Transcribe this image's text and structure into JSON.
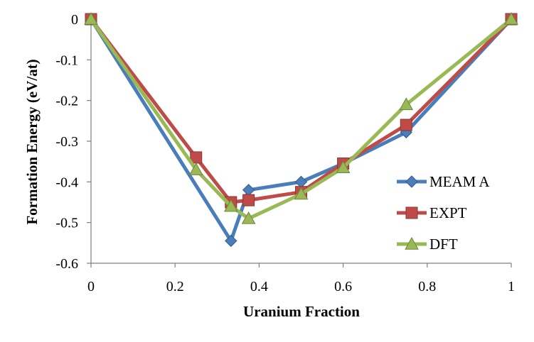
{
  "chart_data": {
    "type": "line",
    "title": "",
    "xlabel": "Uranium Fraction",
    "ylabel": "Formation Energy (eV/at)",
    "xlim": [
      0,
      1
    ],
    "ylim": [
      -0.6,
      0
    ],
    "xticks": [
      0,
      0.2,
      0.4,
      0.6,
      0.8,
      1
    ],
    "xtick_labels": [
      "0",
      "0.2",
      "0.4",
      "0.6",
      "0.8",
      "1"
    ],
    "yticks": [
      0,
      -0.1,
      -0.2,
      -0.3,
      -0.4,
      -0.5,
      -0.6
    ],
    "ytick_labels": [
      "0",
      "-0.1",
      "-0.2",
      "-0.3",
      "-0.4",
      "-0.5",
      "-0.6"
    ],
    "grid": false,
    "legend_position": "lower-right",
    "series": [
      {
        "name": "MEAM A",
        "color": "#4a7ebb",
        "marker": "diamond",
        "x": [
          0,
          0.333,
          0.375,
          0.5,
          0.6,
          0.75,
          1
        ],
        "y": [
          0,
          -0.545,
          -0.42,
          -0.4,
          -0.355,
          -0.278,
          0
        ]
      },
      {
        "name": "EXPT",
        "color": "#be4b48",
        "marker": "square",
        "x": [
          0,
          0.25,
          0.333,
          0.375,
          0.5,
          0.6,
          0.75,
          1
        ],
        "y": [
          0,
          -0.34,
          -0.45,
          -0.445,
          -0.425,
          -0.355,
          -0.26,
          0
        ]
      },
      {
        "name": "DFT",
        "color": "#98b954",
        "marker": "triangle",
        "x": [
          0,
          0.25,
          0.333,
          0.375,
          0.5,
          0.6,
          0.75,
          1
        ],
        "y": [
          0,
          -0.37,
          -0.46,
          -0.49,
          -0.43,
          -0.365,
          -0.21,
          0
        ]
      }
    ]
  }
}
